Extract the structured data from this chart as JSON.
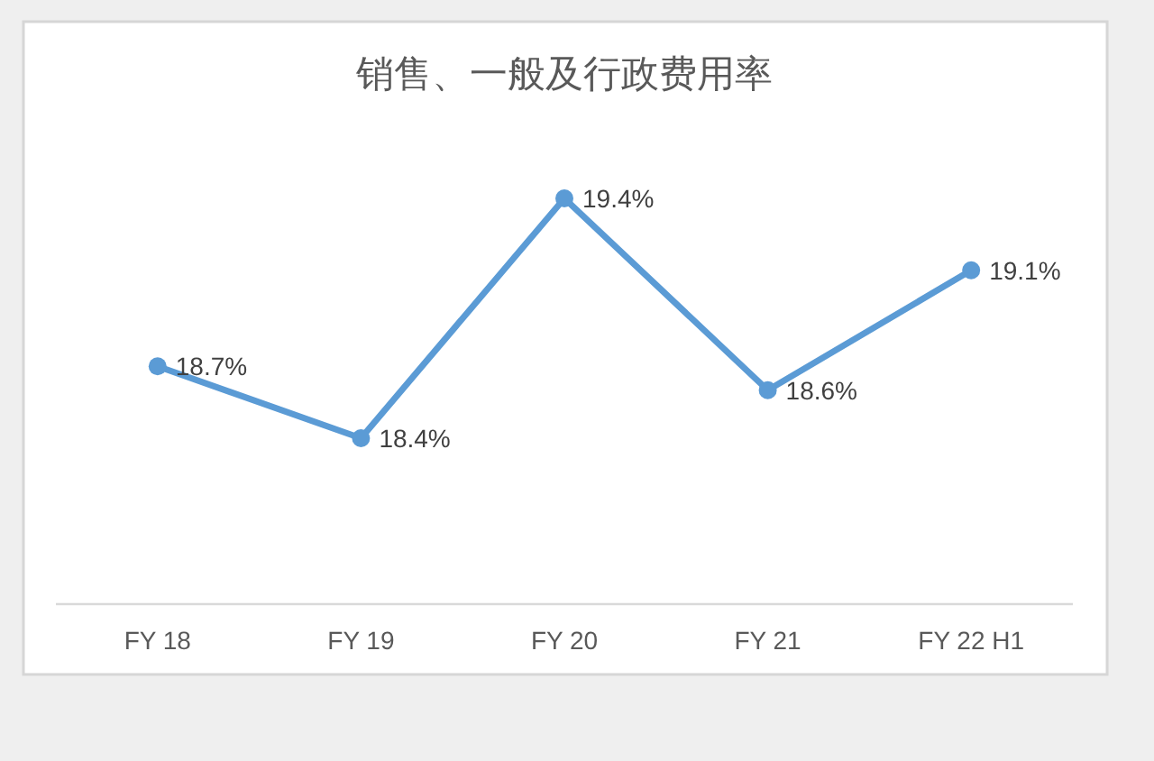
{
  "chart_data": {
    "type": "line",
    "title": "销售、一般及行政费用率",
    "categories": [
      "FY 18",
      "FY 19",
      "FY 20",
      "FY 21",
      "FY 22 H1"
    ],
    "values": [
      18.7,
      18.4,
      19.4,
      18.6,
      19.1
    ],
    "value_labels": [
      "18.7%",
      "18.4%",
      "19.4%",
      "18.6%",
      "19.1%"
    ],
    "color": "#5b9bd5",
    "marker": "circle",
    "line_style": "solid"
  }
}
